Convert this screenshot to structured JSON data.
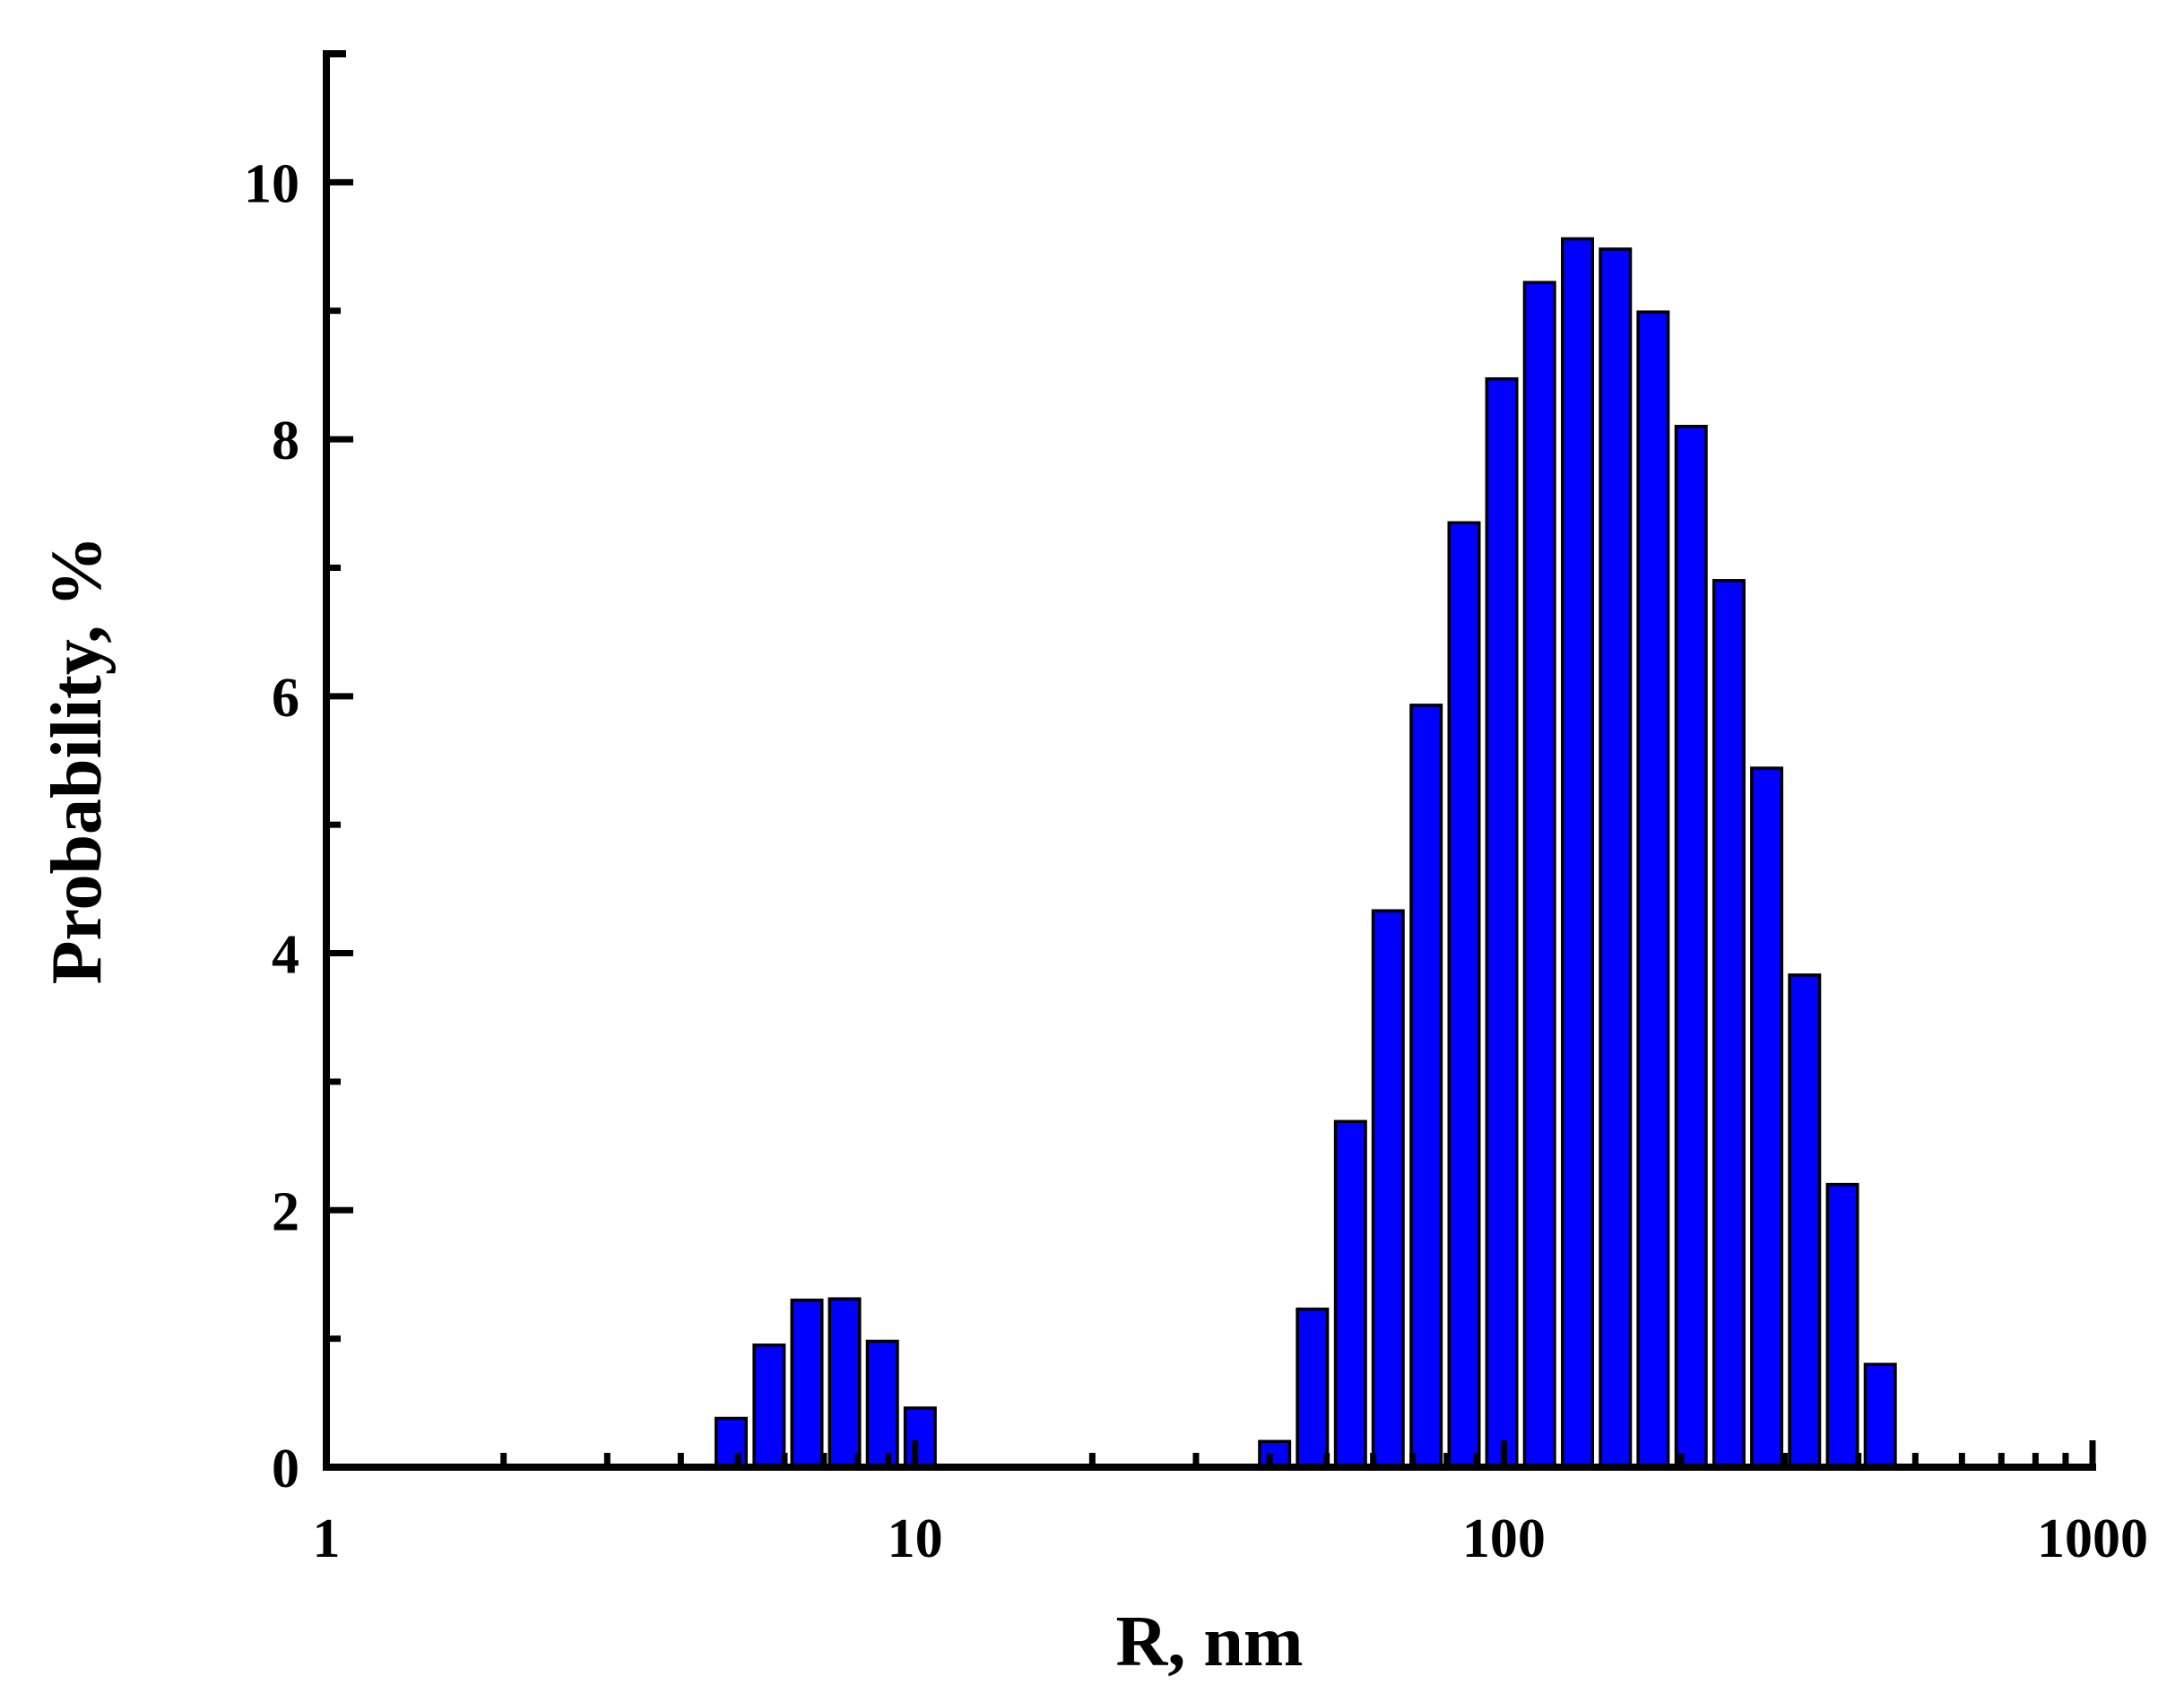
{
  "chart_data": {
    "type": "bar",
    "title": "",
    "xlabel": "R, nm",
    "ylabel": "Probability, %",
    "x_scale": "log",
    "xlim": [
      1,
      1000
    ],
    "ylim": [
      0,
      11
    ],
    "grid": false,
    "bar_color": "#0000ff",
    "bar_edge_color": "#000000",
    "x_ticks": [
      {
        "value": 1,
        "label": "1"
      },
      {
        "value": 10,
        "label": "10"
      },
      {
        "value": 100,
        "label": "100"
      },
      {
        "value": 1000,
        "label": "1000"
      }
    ],
    "y_ticks": [
      {
        "value": 0,
        "label": "0"
      },
      {
        "value": 2,
        "label": "2"
      },
      {
        "value": 4,
        "label": "4"
      },
      {
        "value": 6,
        "label": "6"
      },
      {
        "value": 8,
        "label": "8"
      },
      {
        "value": 10,
        "label": "10"
      }
    ],
    "x_minor_ticks": [
      2,
      3,
      4,
      5,
      6,
      7,
      8,
      9,
      20,
      30,
      40,
      50,
      60,
      70,
      80,
      90,
      200,
      300,
      400,
      500,
      600,
      700,
      800,
      900
    ],
    "y_minor_ticks": [
      1,
      3,
      5,
      7,
      9,
      11
    ],
    "x": [
      4.87,
      5.65,
      6.55,
      7.59,
      8.8,
      10.2,
      40.8,
      47.3,
      54.9,
      63.6,
      73.8,
      85.6,
      99.2,
      115.0,
      133.4,
      154.7,
      179.3,
      208.0,
      241.2,
      279.6,
      324.2,
      376.0,
      435.9
    ],
    "values": [
      0.38,
      0.95,
      1.3,
      1.31,
      0.98,
      0.46,
      0.2,
      1.23,
      2.69,
      4.33,
      5.93,
      7.35,
      8.47,
      9.22,
      9.56,
      9.48,
      8.99,
      8.1,
      6.9,
      5.44,
      3.83,
      2.2,
      0.8
    ]
  }
}
